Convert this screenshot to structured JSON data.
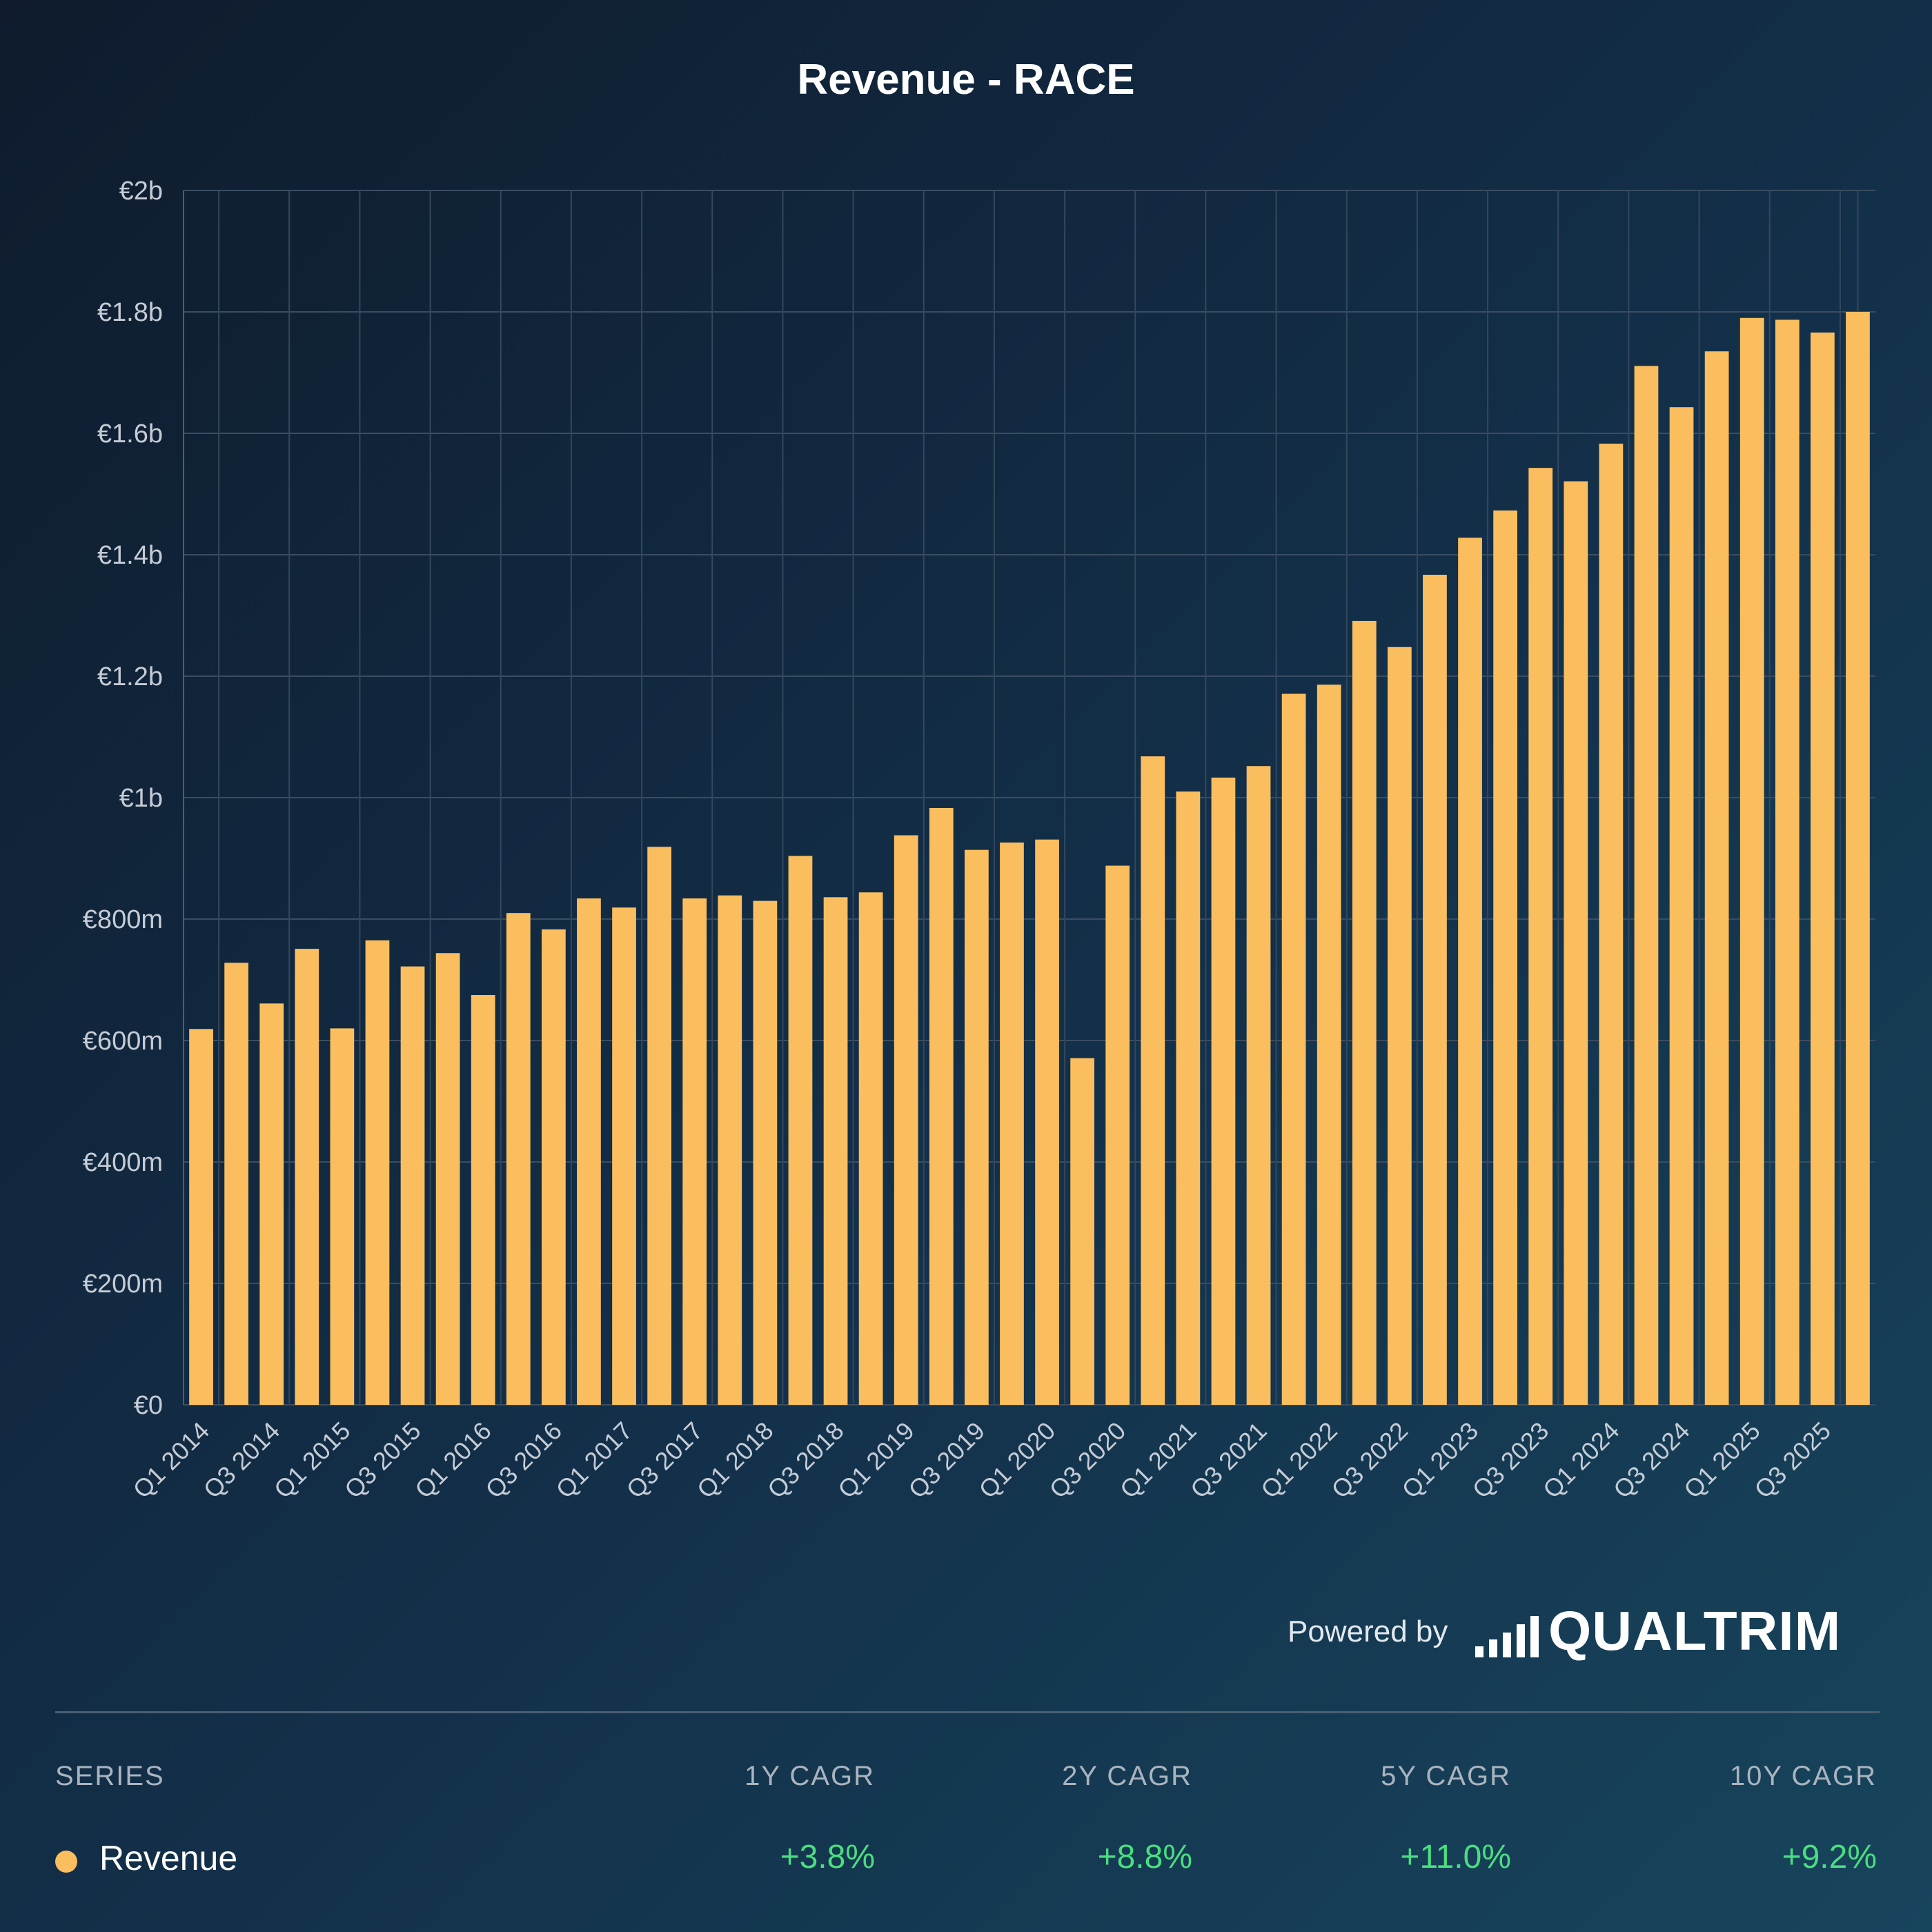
{
  "chart_data": {
    "type": "bar",
    "title": "Revenue - RACE",
    "xlabel": "",
    "ylabel": "",
    "ylim": [
      0,
      2000
    ],
    "y_ticks": [
      {
        "value": 0,
        "label": "€0"
      },
      {
        "value": 200,
        "label": "€200m"
      },
      {
        "value": 400,
        "label": "€400m"
      },
      {
        "value": 600,
        "label": "€600m"
      },
      {
        "value": 800,
        "label": "€800m"
      },
      {
        "value": 1000,
        "label": "€1b"
      },
      {
        "value": 1200,
        "label": "€1.2b"
      },
      {
        "value": 1400,
        "label": "€1.4b"
      },
      {
        "value": 1600,
        "label": "€1.6b"
      },
      {
        "value": 1800,
        "label": "€1.8b"
      },
      {
        "value": 2000,
        "label": "€2b"
      }
    ],
    "grid": true,
    "bar_color": "#fbbe5f",
    "categories": [
      "Q1 2014",
      "Q2 2014",
      "Q3 2014",
      "Q4 2014",
      "Q1 2015",
      "Q2 2015",
      "Q3 2015",
      "Q4 2015",
      "Q1 2016",
      "Q2 2016",
      "Q3 2016",
      "Q4 2016",
      "Q1 2017",
      "Q2 2017",
      "Q3 2017",
      "Q4 2017",
      "Q1 2018",
      "Q2 2018",
      "Q3 2018",
      "Q4 2018",
      "Q1 2019",
      "Q2 2019",
      "Q3 2019",
      "Q4 2019",
      "Q1 2020",
      "Q2 2020",
      "Q3 2020",
      "Q4 2020",
      "Q1 2021",
      "Q2 2021",
      "Q3 2021",
      "Q4 2021",
      "Q1 2022",
      "Q2 2022",
      "Q3 2022",
      "Q4 2022",
      "Q1 2023",
      "Q2 2023",
      "Q3 2023",
      "Q4 2023",
      "Q1 2024",
      "Q2 2024",
      "Q3 2024",
      "Q4 2024",
      "Q1 2025",
      "Q2 2025",
      "Q3 2025",
      "Q4 2025"
    ],
    "x_tick_labels": [
      "Q1 2014",
      "Q3 2014",
      "Q1 2015",
      "Q3 2015",
      "Q1 2016",
      "Q3 2016",
      "Q1 2017",
      "Q3 2017",
      "Q1 2018",
      "Q3 2018",
      "Q1 2019",
      "Q3 2019",
      "Q1 2020",
      "Q3 2020",
      "Q1 2021",
      "Q3 2021",
      "Q1 2022",
      "Q3 2022",
      "Q1 2023",
      "Q3 2023",
      "Q1 2024",
      "Q3 2024",
      "Q1 2025",
      "Q3 2025"
    ],
    "series": [
      {
        "name": "Revenue",
        "values": [
          619,
          728,
          661,
          751,
          620,
          765,
          722,
          744,
          675,
          810,
          783,
          834,
          819,
          919,
          834,
          839,
          830,
          904,
          836,
          844,
          938,
          983,
          914,
          926,
          931,
          571,
          888,
          1068,
          1010,
          1033,
          1052,
          1171,
          1186,
          1291,
          1248,
          1367,
          1428,
          1473,
          1543,
          1521,
          1583,
          1711,
          1643,
          1735,
          1790,
          1787,
          1766,
          1800
        ]
      }
    ]
  },
  "branding": {
    "powered_by": "Powered by",
    "logo_text": "QUALTRIM"
  },
  "table": {
    "headers": {
      "series": "SERIES",
      "cagr_1y": "1Y CAGR",
      "cagr_2y": "2Y CAGR",
      "cagr_5y": "5Y CAGR",
      "cagr_10y": "10Y CAGR"
    },
    "rows": [
      {
        "name": "Revenue",
        "color": "#fbbe5f",
        "cagr_1y": "+3.8%",
        "cagr_2y": "+8.8%",
        "cagr_5y": "+11.0%",
        "cagr_10y": "+9.2%"
      }
    ]
  }
}
